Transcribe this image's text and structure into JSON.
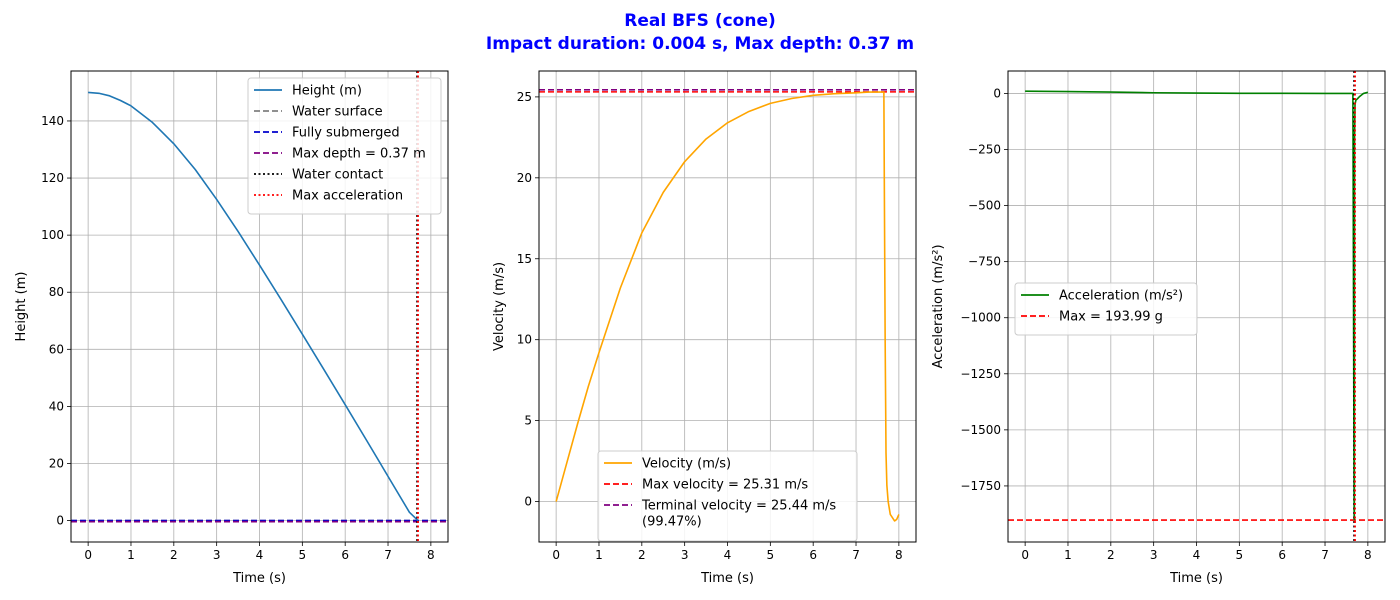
{
  "figure": {
    "title_line1": "Real BFS (cone)",
    "title_line2": "Impact duration: 0.004 s, Max depth: 0.37 m",
    "title_color": "#0000ff"
  },
  "chart_data": [
    {
      "type": "line",
      "xlabel": "Time (s)",
      "ylabel": "Height (m)",
      "xlim": [
        -0.4,
        8.4
      ],
      "ylim": [
        -7.5,
        157.5
      ],
      "xticks": [
        0,
        1,
        2,
        3,
        4,
        5,
        6,
        7,
        8
      ],
      "yticks": [
        0,
        20,
        40,
        60,
        80,
        100,
        120,
        140
      ],
      "grid": true,
      "legend_position": "top-right",
      "series": [
        {
          "name": "Height (m)",
          "color": "#1f77b4",
          "style": "solid",
          "x": [
            0,
            0.25,
            0.5,
            0.75,
            1,
            1.5,
            2,
            2.5,
            3,
            3.5,
            4,
            4.5,
            5,
            5.5,
            6,
            6.5,
            7,
            7.5,
            7.7
          ],
          "y": [
            150,
            149.7,
            148.8,
            147.2,
            145.3,
            139.5,
            132.0,
            123.0,
            112.5,
            101.3,
            89.5,
            77.5,
            65.3,
            53.0,
            40.6,
            28.1,
            15.5,
            2.9,
            0
          ]
        }
      ],
      "hlines": [
        {
          "name": "Water surface",
          "y": 0,
          "color": "#808080",
          "style": "dashed"
        },
        {
          "name": "Fully submerged",
          "y": 0,
          "color": "#0000cc",
          "style": "dashed"
        },
        {
          "name": "Max depth = 0.37 m",
          "y": -0.37,
          "color": "#800080",
          "style": "dashed"
        }
      ],
      "vlines": [
        {
          "name": "Water contact",
          "x": 7.68,
          "color": "#000000",
          "style": "dotted"
        },
        {
          "name": "Max acceleration",
          "x": 7.7,
          "color": "#ff0000",
          "style": "dotted"
        }
      ]
    },
    {
      "type": "line",
      "xlabel": "Time (s)",
      "ylabel": "Velocity (m/s)",
      "xlim": [
        -0.4,
        8.4
      ],
      "ylim": [
        -2.5,
        26.6
      ],
      "xticks": [
        0,
        1,
        2,
        3,
        4,
        5,
        6,
        7,
        8
      ],
      "yticks": [
        0,
        5,
        10,
        15,
        20,
        25
      ],
      "grid": true,
      "legend_position": "bottom-center",
      "series": [
        {
          "name": "Velocity (m/s)",
          "color": "#ffa500",
          "style": "solid",
          "x": [
            0,
            0.25,
            0.5,
            0.75,
            1,
            1.5,
            2,
            2.5,
            3,
            3.5,
            4,
            4.5,
            5,
            5.5,
            6,
            6.5,
            7,
            7.3,
            7.65,
            7.66,
            7.68,
            7.7,
            7.72,
            7.75,
            7.8,
            7.9,
            7.95,
            8.0
          ],
          "y": [
            0,
            2.4,
            4.8,
            7.1,
            9.2,
            13.2,
            16.6,
            19.1,
            21.0,
            22.4,
            23.4,
            24.1,
            24.6,
            24.9,
            25.1,
            25.2,
            25.25,
            25.3,
            25.3,
            20.0,
            10.0,
            3.0,
            1.0,
            0.0,
            -0.8,
            -1.2,
            -1.1,
            -0.8
          ]
        }
      ],
      "hlines": [
        {
          "name": "Max velocity = 25.31 m/s",
          "y": 25.31,
          "color": "#ff0000",
          "style": "dashed"
        },
        {
          "name": "Terminal velocity = 25.44 m/s (99.47%)",
          "y": 25.44,
          "color": "#800080",
          "style": "dashed"
        }
      ],
      "vlines": []
    },
    {
      "type": "line",
      "xlabel": "Time (s)",
      "ylabel": "Acceleration (m/s²)",
      "xlim": [
        -0.4,
        8.4
      ],
      "ylim": [
        -2000,
        100
      ],
      "xticks": [
        0,
        1,
        2,
        3,
        4,
        5,
        6,
        7,
        8
      ],
      "yticks": [
        0,
        -250,
        -500,
        -750,
        -1000,
        -1250,
        -1500,
        -1750
      ],
      "grid": true,
      "legend_position": "center-left",
      "series": [
        {
          "name": "Acceleration (m/s²)",
          "color": "#008000",
          "style": "solid",
          "x": [
            0,
            1,
            2,
            3,
            4,
            5,
            6,
            7,
            7.65,
            7.68,
            7.685,
            7.69,
            7.7,
            7.72,
            7.75,
            7.8,
            7.9,
            8.0
          ],
          "y": [
            9.8,
            8.5,
            6.0,
            3.0,
            1.5,
            0.7,
            0.3,
            0.1,
            0.0,
            -1900,
            -1900,
            -200,
            -50,
            -30,
            -25,
            -15,
            0,
            5
          ]
        }
      ],
      "hlines": [
        {
          "name": "Max = 193.99 g",
          "y": -1902.4,
          "color": "#ff0000",
          "style": "dashed"
        }
      ],
      "vlines": [
        {
          "name": "",
          "x": 7.68,
          "color": "#000000",
          "style": "dotted"
        },
        {
          "name": "",
          "x": 7.7,
          "color": "#ff0000",
          "style": "dotted"
        }
      ]
    }
  ],
  "legends": [
    [
      {
        "label": "Height (m)",
        "color": "#1f77b4",
        "style": "solid"
      },
      {
        "label": "Water surface",
        "color": "#808080",
        "style": "dashed"
      },
      {
        "label": "Fully submerged",
        "color": "#0000cc",
        "style": "dashed"
      },
      {
        "label": "Max depth = 0.37 m",
        "color": "#800080",
        "style": "dashed"
      },
      {
        "label": "Water contact",
        "color": "#000000",
        "style": "dotted"
      },
      {
        "label": "Max acceleration",
        "color": "#ff0000",
        "style": "dotted"
      }
    ],
    [
      {
        "label": "Velocity (m/s)",
        "color": "#ffa500",
        "style": "solid"
      },
      {
        "label": "Max velocity = 25.31 m/s",
        "color": "#ff0000",
        "style": "dashed"
      },
      {
        "label": "Terminal velocity = 25.44 m/s",
        "label2": "(99.47%)",
        "color": "#800080",
        "style": "dashed"
      }
    ],
    [
      {
        "label": "Acceleration (m/s²)",
        "color": "#008000",
        "style": "solid"
      },
      {
        "label": "Max = 193.99 g",
        "color": "#ff0000",
        "style": "dashed"
      }
    ]
  ]
}
